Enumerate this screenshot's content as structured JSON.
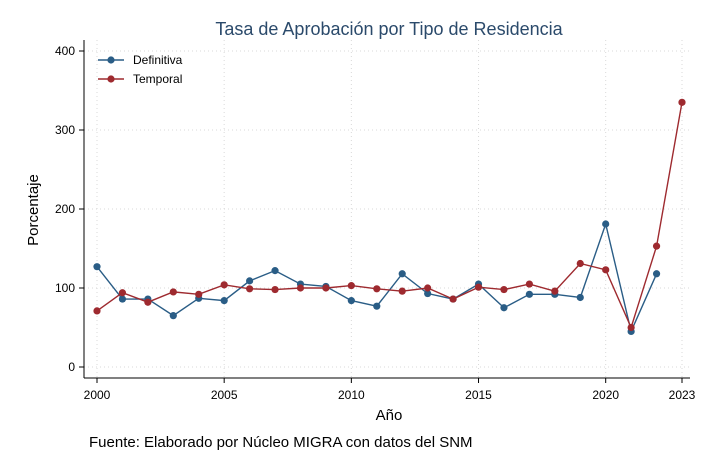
{
  "chart_data": {
    "type": "line",
    "title": "Tasa de Aprobación por Tipo de Residencia",
    "xlabel": "Año",
    "ylabel": "Porcentaje",
    "xlim": [
      2000,
      2023
    ],
    "ylim": [
      0,
      400
    ],
    "x_ticks": [
      2000,
      2005,
      2010,
      2015,
      2020,
      2023
    ],
    "y_ticks": [
      0,
      100,
      200,
      300,
      400
    ],
    "grid": true,
    "legend_position": "top-left",
    "x": [
      2000,
      2001,
      2002,
      2003,
      2004,
      2005,
      2006,
      2007,
      2008,
      2009,
      2010,
      2011,
      2012,
      2013,
      2014,
      2015,
      2016,
      2017,
      2018,
      2019,
      2020,
      2021,
      2022,
      2023
    ],
    "series": [
      {
        "name": "Definitiva",
        "color": "#2a5d86",
        "values": [
          127,
          86,
          86,
          65,
          87,
          84,
          109,
          122,
          105,
          102,
          84,
          77,
          118,
          93,
          86,
          105,
          75,
          92,
          92,
          88,
          181,
          45,
          118,
          null
        ]
      },
      {
        "name": "Temporal",
        "color": "#9e2a2f",
        "values": [
          71,
          94,
          82,
          95,
          92,
          104,
          99,
          98,
          100,
          100,
          103,
          99,
          96,
          100,
          86,
          101,
          98,
          105,
          96,
          131,
          123,
          50,
          153,
          335
        ]
      }
    ],
    "source": "Fuente: Elaborado por Núcleo MIGRA con datos del SNM"
  }
}
